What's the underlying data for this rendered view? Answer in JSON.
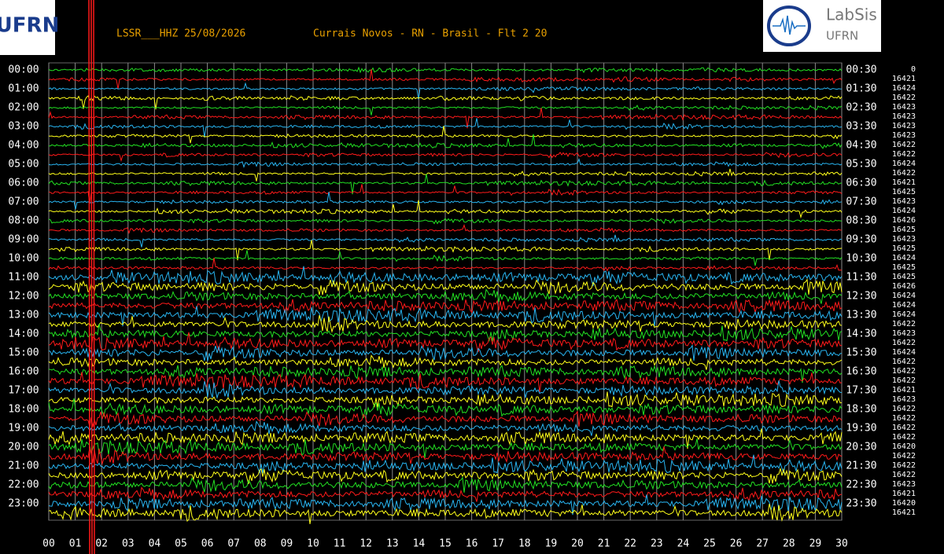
{
  "header": {
    "station": "LSSR___HHZ 25/08/2026",
    "location": "Currais Novos - RN - Brasil - Flt 2 20",
    "left_logo": "UFRN",
    "right_logo": {
      "name": "LabSis",
      "org": "UFRN"
    }
  },
  "helicorder": {
    "left_labels": [
      "00:00",
      "01:00",
      "02:00",
      "03:00",
      "04:00",
      "05:00",
      "06:00",
      "07:00",
      "08:00",
      "09:00",
      "10:00",
      "11:00",
      "12:00",
      "13:00",
      "14:00",
      "15:00",
      "16:00",
      "17:00",
      "18:00",
      "19:00",
      "20:00",
      "21:00",
      "22:00",
      "23:00"
    ],
    "right_labels": [
      "00:30",
      "01:30",
      "02:30",
      "03:30",
      "04:30",
      "05:30",
      "06:30",
      "07:30",
      "08:30",
      "09:30",
      "10:30",
      "11:30",
      "12:30",
      "13:30",
      "14:30",
      "15:30",
      "16:30",
      "17:30",
      "18:30",
      "19:30",
      "20:30",
      "21:30",
      "22:30",
      "23:30"
    ],
    "offsets": [
      "0",
      "16421",
      "16424",
      "16422",
      "16423",
      "16423",
      "16423",
      "16423",
      "16422",
      "16422",
      "16424",
      "16422",
      "16421",
      "16425",
      "16423",
      "16424",
      "16426",
      "16425",
      "16423",
      "16425",
      "16424",
      "16425",
      "16425",
      "16426",
      "16424",
      "16424",
      "16424",
      "16422",
      "16423",
      "16422",
      "16424",
      "16422",
      "16422",
      "16422",
      "16421",
      "16423",
      "16422",
      "16422",
      "16422",
      "16422",
      "16420",
      "16422",
      "16422",
      "16422",
      "16423",
      "16421",
      "16420",
      "16421"
    ],
    "minute_labels": [
      "00",
      "01",
      "02",
      "03",
      "04",
      "05",
      "06",
      "07",
      "08",
      "09",
      "10",
      "11",
      "12",
      "13",
      "14",
      "15",
      "16",
      "17",
      "18",
      "19",
      "20",
      "21",
      "22",
      "23",
      "24",
      "25",
      "26",
      "27",
      "28",
      "29",
      "30"
    ]
  }
}
